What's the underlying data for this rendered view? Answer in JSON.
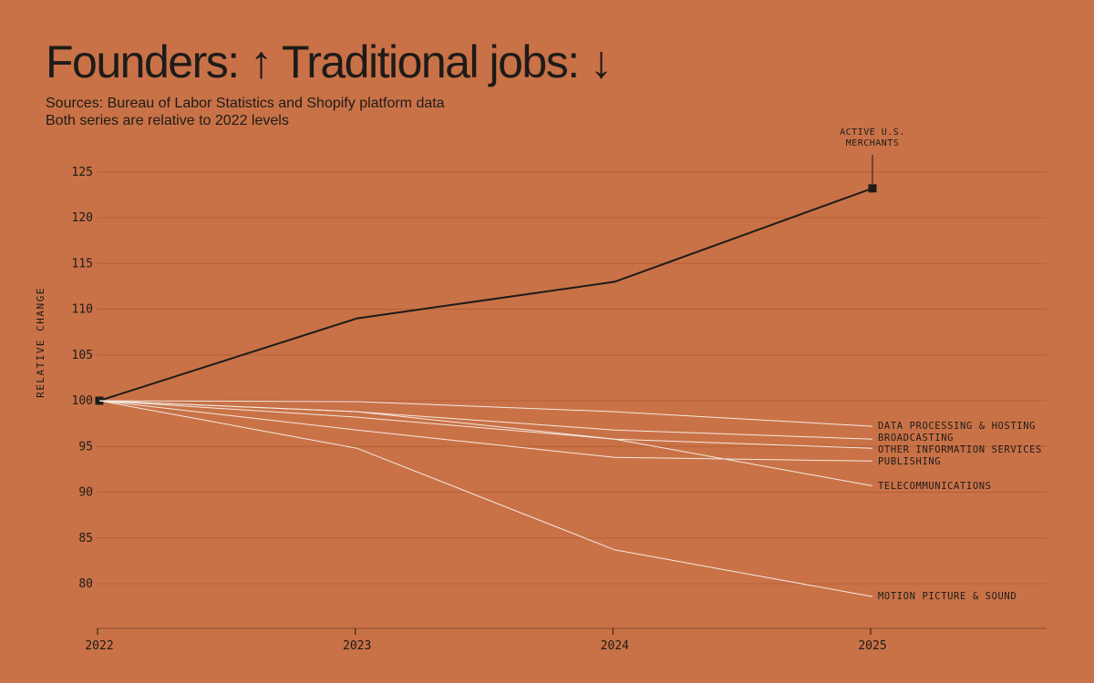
{
  "page": {
    "title": "Founders: ↑ Traditional jobs: ↓",
    "subtitle_lines": [
      "Sources: Bureau of Labor Statistics and Shopify platform data",
      "Both series are relative to 2022 levels"
    ]
  },
  "colors": {
    "background": "#c97247",
    "primary_line": "#1e1b19",
    "secondary_lines": "#f4e9e1",
    "gridline": "#b65f37",
    "text": "#1e1b19"
  },
  "chart_data": {
    "type": "line",
    "title": "Founders: ↑ Traditional jobs: ↓",
    "xlabel": "",
    "ylabel": "RELATIVE CHANGE",
    "x": [
      "2022",
      "2023",
      "2024",
      "2025"
    ],
    "ylim": [
      75,
      126
    ],
    "yticks": [
      80,
      85,
      90,
      95,
      100,
      105,
      110,
      115,
      120,
      125
    ],
    "grid": true,
    "series": [
      {
        "name": "ACTIVE U.S. MERCHANTS",
        "values": [
          100,
          109,
          113,
          123.2
        ],
        "emphasis": true,
        "label_lines": [
          "ACTIVE U.S.",
          "MERCHANTS"
        ]
      },
      {
        "name": "DATA PROCESSING & HOSTING",
        "values": [
          100,
          99.9,
          98.8,
          97.2
        ]
      },
      {
        "name": "BROADCASTING",
        "values": [
          100,
          98.8,
          96.8,
          95.8
        ]
      },
      {
        "name": "OTHER INFORMATION SERVICES",
        "values": [
          100,
          98.2,
          95.8,
          94.8
        ]
      },
      {
        "name": "PUBLISHING",
        "values": [
          100,
          96.8,
          93.8,
          93.4
        ]
      },
      {
        "name": "TELECOMMUNICATIONS",
        "values": [
          100,
          98.8,
          95.8,
          90.7
        ]
      },
      {
        "name": "MOTION PICTURE & SOUND",
        "values": [
          100,
          94.8,
          83.7,
          78.6
        ]
      }
    ]
  }
}
